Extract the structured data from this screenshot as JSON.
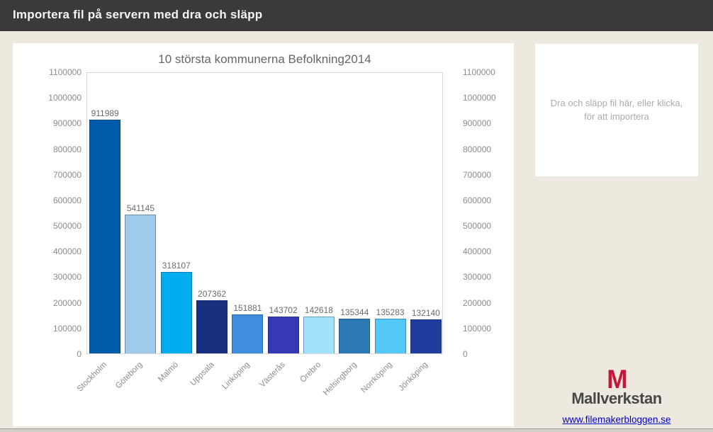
{
  "header": {
    "title": "Importera fil på servern med dra och släpp"
  },
  "chart_data": {
    "type": "bar",
    "title": "10 största kommunerna Befolkning2014",
    "categories": [
      "Stockholm",
      "Göteborg",
      "Malmö",
      "Uppsala",
      "Linköping",
      "Västerås",
      "Örebro",
      "Helsingborg",
      "Norrköping",
      "Jönköping"
    ],
    "values": [
      911989,
      541145,
      318107,
      207362,
      151881,
      143702,
      142618,
      135344,
      135283,
      132140
    ],
    "bar_colors": [
      "#005CA9",
      "#9FCAEA",
      "#00AEEF",
      "#16307E",
      "#3E8EDD",
      "#3539B5",
      "#A2E2F8",
      "#2B78B2",
      "#56C8F8",
      "#1E3D9C"
    ],
    "xlabel": "",
    "ylabel": "",
    "ylim": [
      0,
      1100000
    ],
    "yticks": [
      0,
      100000,
      200000,
      300000,
      400000,
      500000,
      600000,
      700000,
      800000,
      900000,
      1000000,
      1100000
    ],
    "grid": false,
    "value_labels": true,
    "legend": "none",
    "y_axis_sides": "both"
  },
  "dropzone": {
    "text": "Dra och släpp fil här, eller klicka, för att importera"
  },
  "footer": {
    "logo_m": "M",
    "logo_text": "Mallverkstan",
    "link": "www.filemakerbloggen.se"
  },
  "colors": {
    "header_bg": "#3A3A3C",
    "page_bg": "#EDE9DE",
    "panel_bg": "#FFFFFF",
    "logo_red": "#C4173A",
    "link_blue": "#0000CC"
  }
}
